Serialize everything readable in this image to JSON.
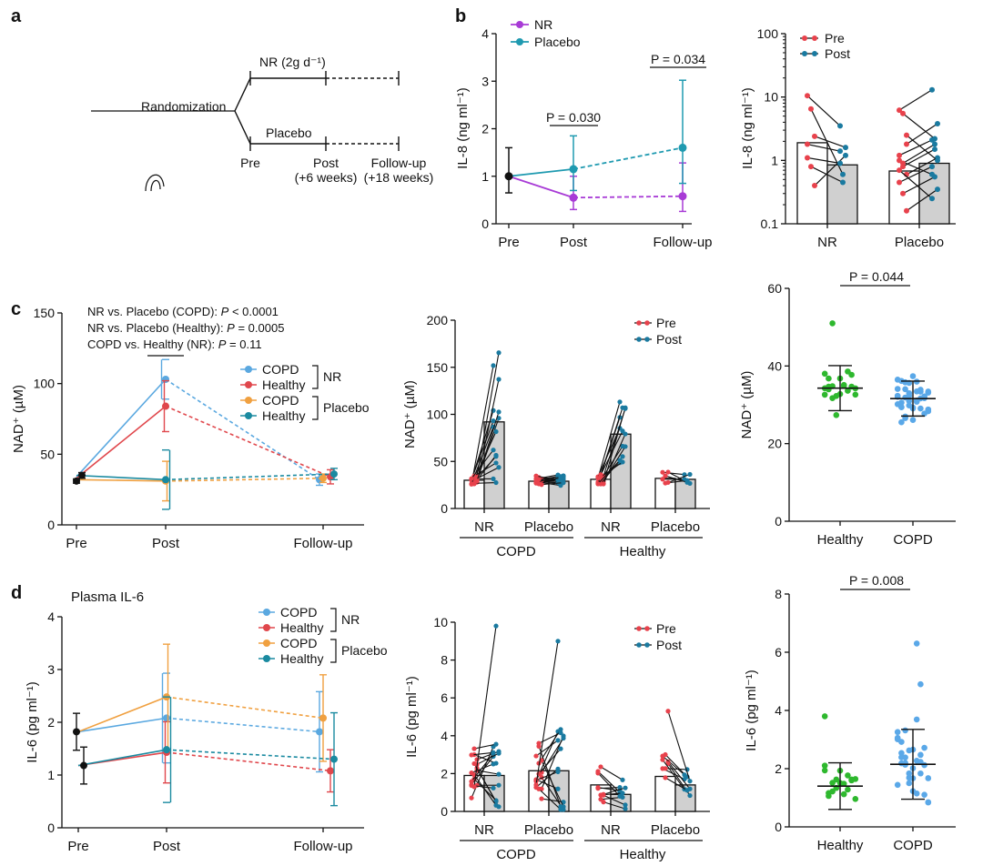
{
  "colors": {
    "nr": "#a83bd6",
    "placebo": "#1f9ab0",
    "pre": "#e8424c",
    "post": "#1a7aa0",
    "copd_nr": "#5aa8e0",
    "healthy_nr": "#e0474c",
    "copd_pl": "#f0a040",
    "healthy_pl": "#1a8aa0",
    "healthy_dot": "#2eb82e",
    "copd_dot": "#5aa8e8",
    "bar_grey": "#d0d0d0",
    "black": "#111111"
  },
  "panel_a": {
    "letter": "a",
    "arms": [
      "NR (2g d⁻¹)",
      "Placebo"
    ],
    "randomization": "Randomization",
    "timepoints": [
      "Pre",
      "Post",
      "Follow-up"
    ],
    "timepoint_sub": [
      "",
      "(+6 weeks)",
      "(+18 weeks)"
    ]
  },
  "panel_b": {
    "letter": "b",
    "chart_data": [
      {
        "type": "line",
        "title": "",
        "ylabel": "IL-8 (ng ml⁻¹)",
        "x": [
          "Pre",
          "Post",
          "Follow-up"
        ],
        "ylim": [
          0,
          4
        ],
        "yticks": [
          "0",
          "1",
          "2",
          "3",
          "4"
        ],
        "series": [
          {
            "name": "NR",
            "values": [
              1.0,
              0.55,
              0.58
            ],
            "err_low": [
              0.35,
              0.25,
              0.32
            ],
            "err_high": [
              0.6,
              0.45,
              0.7
            ]
          },
          {
            "name": "Placebo",
            "values": [
              1.0,
              1.15,
              1.6
            ],
            "err_low": [
              0.35,
              0.45,
              0.75
            ],
            "err_high": [
              0.6,
              0.7,
              1.42
            ]
          }
        ],
        "annotations": [
          "P = 0.030",
          "P = 0.034"
        ]
      },
      {
        "type": "bar",
        "ylabel": "IL-8 (ng ml⁻¹)",
        "yscale": "log",
        "ylim": [
          0.1,
          100
        ],
        "yticks": [
          "0.1",
          "1",
          "10",
          "100"
        ],
        "categories": [
          "NR",
          "Placebo"
        ],
        "series": [
          {
            "name": "Pre",
            "values": [
              1.9,
              0.68
            ]
          },
          {
            "name": "Post",
            "values": [
              0.85,
              0.9
            ]
          }
        ]
      }
    ]
  },
  "panel_c": {
    "letter": "c",
    "stats": [
      {
        "label": "NR vs. Placebo (COPD): ",
        "p": "P",
        "val": " < 0.0001"
      },
      {
        "label": "NR vs. Placebo (Healthy): ",
        "p": "P",
        "val": " = 0.0005"
      },
      {
        "label": "COPD vs. Healthy (NR): ",
        "p": "P",
        "val": " = 0.11"
      }
    ],
    "chart_data": [
      {
        "type": "line",
        "ylabel": "NAD⁺ (µM)",
        "x": [
          "Pre",
          "Post",
          "Follow-up"
        ],
        "ylim": [
          0,
          150
        ],
        "yticks": [
          "0",
          "50",
          "100",
          "150"
        ],
        "series": [
          {
            "name": "COPD",
            "group": "NR",
            "values": [
              34,
              103,
              32
            ]
          },
          {
            "name": "Healthy",
            "group": "NR",
            "values": [
              33,
              84,
              34
            ]
          },
          {
            "name": "COPD",
            "group": "Placebo",
            "values": [
              32,
              31,
              33
            ]
          },
          {
            "name": "Healthy",
            "group": "Placebo",
            "values": [
              35,
              32,
              36
            ]
          }
        ],
        "legend_groups": [
          "NR",
          "Placebo"
        ]
      },
      {
        "type": "bar",
        "ylabel": "NAD⁺ (µM)",
        "ylim": [
          0,
          200
        ],
        "yticks": [
          "0",
          "50",
          "100",
          "150",
          "200"
        ],
        "categories": [
          "NR",
          "Placebo",
          "NR",
          "Placebo"
        ],
        "groups": [
          "COPD",
          "Healthy"
        ],
        "series": [
          {
            "name": "Pre",
            "values": [
              30,
              29,
              31,
              32
            ]
          },
          {
            "name": "Post",
            "values": [
              92,
              29,
              79,
              31
            ]
          }
        ]
      },
      {
        "type": "scatter",
        "ylabel": "NAD⁺ (µM)",
        "ylim": [
          0,
          60
        ],
        "yticks": [
          "0",
          "20",
          "40",
          "60"
        ],
        "categories": [
          "Healthy",
          "COPD"
        ],
        "means": [
          34.3,
          31.6
        ],
        "sd": [
          5.8,
          4.5
        ],
        "annotation": "P = 0.044"
      }
    ]
  },
  "panel_d": {
    "letter": "d",
    "subtitle": "Plasma IL-6",
    "chart_data": [
      {
        "type": "line",
        "ylabel": "IL-6 (pg ml⁻¹)",
        "x": [
          "Pre",
          "Post",
          "Follow-up"
        ],
        "ylim": [
          0,
          4
        ],
        "yticks": [
          "0",
          "1",
          "2",
          "3",
          "4"
        ],
        "series": [
          {
            "name": "COPD",
            "group": "NR",
            "values": [
              1.82,
              2.08,
              1.82
            ]
          },
          {
            "name": "Healthy",
            "group": "NR",
            "values": [
              1.18,
              1.43,
              1.08
            ]
          },
          {
            "name": "COPD",
            "group": "Placebo",
            "values": [
              1.82,
              2.48,
              2.08
            ]
          },
          {
            "name": "Healthy",
            "group": "Placebo",
            "values": [
              1.18,
              1.48,
              1.3
            ]
          }
        ],
        "legend_groups": [
          "NR",
          "Placebo"
        ]
      },
      {
        "type": "bar",
        "ylabel": "IL-6 (pg ml⁻¹)",
        "ylim": [
          0,
          10
        ],
        "yticks": [
          "0",
          "2",
          "4",
          "6",
          "8",
          "10"
        ],
        "categories": [
          "NR",
          "Placebo",
          "NR",
          "Placebo"
        ],
        "groups": [
          "COPD",
          "Healthy"
        ],
        "series": [
          {
            "name": "Pre",
            "values": [
              1.9,
              2.15,
              1.4,
              1.85
            ]
          },
          {
            "name": "Post",
            "values": [
              1.9,
              2.15,
              0.9,
              1.4
            ]
          }
        ]
      },
      {
        "type": "scatter",
        "ylabel": "IL-6 (pg ml⁻¹)",
        "ylim": [
          0,
          8
        ],
        "yticks": [
          "0",
          "2",
          "4",
          "6",
          "8"
        ],
        "categories": [
          "Healthy",
          "COPD"
        ],
        "means": [
          1.4,
          2.15
        ],
        "sd": [
          0.8,
          1.2
        ],
        "annotation": "P = 0.008"
      }
    ]
  },
  "legend": {
    "pre": "Pre",
    "post": "Post",
    "nr": "NR",
    "placebo": "Placebo",
    "copd": "COPD",
    "healthy": "Healthy"
  }
}
